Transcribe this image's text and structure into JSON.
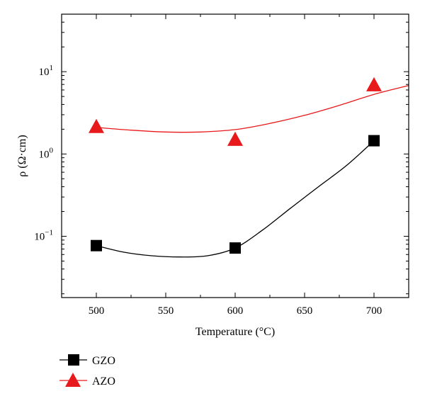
{
  "chart_data": {
    "type": "scatter",
    "xlabel": "Temperature (°C)",
    "ylabel": "ρ (Ω·cm)",
    "x_ticks": [
      "500",
      "550",
      "600",
      "650",
      "700"
    ],
    "y_ticks": [
      {
        "value": 0.1,
        "base": "10",
        "exp": "−1"
      },
      {
        "value": 1,
        "base": "10",
        "exp": "0"
      },
      {
        "value": 10,
        "base": "10",
        "exp": "1"
      }
    ],
    "xlim": [
      475,
      725
    ],
    "ylim": [
      0.018,
      50
    ],
    "yscale": "log",
    "grid": false,
    "legend_position": "below-left",
    "series": [
      {
        "name": "GZO",
        "marker": "square",
        "color": "#000000",
        "x": [
          500,
          600,
          700
        ],
        "y": [
          0.077,
          0.072,
          1.45
        ],
        "curve": [
          [
            500,
            0.077
          ],
          [
            520,
            0.064
          ],
          [
            540,
            0.058
          ],
          [
            560,
            0.056
          ],
          [
            580,
            0.058
          ],
          [
            600,
            0.072
          ],
          [
            620,
            0.12
          ],
          [
            640,
            0.22
          ],
          [
            660,
            0.4
          ],
          [
            680,
            0.72
          ],
          [
            700,
            1.45
          ]
        ]
      },
      {
        "name": "AZO",
        "marker": "triangle",
        "color": "#e8191b",
        "x": [
          500,
          600,
          700
        ],
        "y": [
          2.15,
          1.5,
          6.9
        ],
        "curve": [
          [
            500,
            2.1
          ],
          [
            525,
            1.95
          ],
          [
            550,
            1.85
          ],
          [
            575,
            1.85
          ],
          [
            600,
            1.98
          ],
          [
            625,
            2.35
          ],
          [
            650,
            2.95
          ],
          [
            675,
            3.9
          ],
          [
            700,
            5.3
          ],
          [
            725,
            6.8
          ]
        ]
      }
    ]
  }
}
